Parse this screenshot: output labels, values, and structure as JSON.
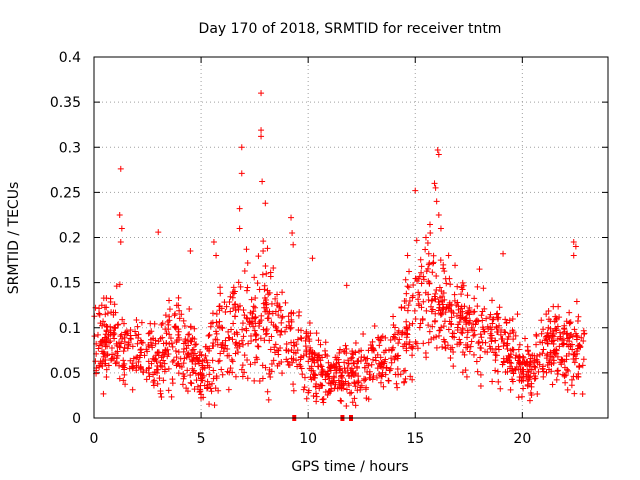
{
  "chart_data": {
    "type": "scatter",
    "title": "Day 170 of 2018, SRMTID for receiver tntm",
    "xlabel": "GPS time / hours",
    "ylabel": "SRMTID / TECUs",
    "xlim": [
      0,
      24
    ],
    "ylim": [
      0,
      0.4
    ],
    "xticks": [
      0,
      5,
      10,
      15,
      20
    ],
    "xtick_labels": [
      "0",
      "5",
      "10",
      "15",
      "20"
    ],
    "yticks": [
      0,
      0.05,
      0.1,
      0.15,
      0.2,
      0.25,
      0.3,
      0.35,
      0.4
    ],
    "ytick_labels": [
      "0",
      "0.05",
      "0.1",
      "0.15",
      "0.2",
      "0.25",
      "0.3",
      "0.35",
      "0.4"
    ],
    "grid": true,
    "marker": "+",
    "series_color": "#ff0000",
    "profile": {
      "x": [
        0,
        0.5,
        1,
        1.5,
        2,
        2.5,
        3,
        3.5,
        4,
        4.5,
        5,
        5.5,
        6,
        6.5,
        7,
        7.5,
        8,
        8.5,
        9,
        9.5,
        10,
        10.5,
        11,
        11.5,
        12,
        12.5,
        13,
        13.5,
        14,
        14.5,
        15,
        15.5,
        16,
        16.5,
        17,
        17.5,
        18,
        18.5,
        19,
        19.5,
        20,
        20.5,
        21,
        21.5,
        22,
        22.5,
        22.9
      ],
      "y_mean": [
        0.075,
        0.085,
        0.09,
        0.08,
        0.075,
        0.07,
        0.065,
        0.075,
        0.08,
        0.075,
        0.045,
        0.07,
        0.09,
        0.1,
        0.1,
        0.1,
        0.11,
        0.1,
        0.085,
        0.08,
        0.065,
        0.055,
        0.045,
        0.045,
        0.05,
        0.055,
        0.06,
        0.065,
        0.075,
        0.1,
        0.12,
        0.14,
        0.13,
        0.12,
        0.11,
        0.1,
        0.1,
        0.095,
        0.085,
        0.075,
        0.06,
        0.05,
        0.075,
        0.08,
        0.075,
        0.075,
        0.07
      ],
      "y_spread": [
        0.03,
        0.035,
        0.04,
        0.035,
        0.035,
        0.03,
        0.03,
        0.035,
        0.035,
        0.03,
        0.02,
        0.04,
        0.045,
        0.05,
        0.05,
        0.05,
        0.05,
        0.045,
        0.04,
        0.035,
        0.03,
        0.025,
        0.02,
        0.02,
        0.025,
        0.025,
        0.025,
        0.03,
        0.035,
        0.045,
        0.05,
        0.05,
        0.05,
        0.045,
        0.045,
        0.04,
        0.04,
        0.04,
        0.035,
        0.03,
        0.025,
        0.025,
        0.03,
        0.03,
        0.03,
        0.035,
        0.035
      ]
    },
    "outliers": [
      {
        "x": 1.25,
        "y": 0.276
      },
      {
        "x": 1.2,
        "y": 0.225
      },
      {
        "x": 1.3,
        "y": 0.21
      },
      {
        "x": 1.25,
        "y": 0.195
      },
      {
        "x": 3.0,
        "y": 0.206
      },
      {
        "x": 4.5,
        "y": 0.185
      },
      {
        "x": 5.6,
        "y": 0.195
      },
      {
        "x": 5.7,
        "y": 0.18
      },
      {
        "x": 6.9,
        "y": 0.3
      },
      {
        "x": 6.9,
        "y": 0.271
      },
      {
        "x": 6.8,
        "y": 0.232
      },
      {
        "x": 6.8,
        "y": 0.21
      },
      {
        "x": 7.8,
        "y": 0.36
      },
      {
        "x": 7.8,
        "y": 0.319
      },
      {
        "x": 7.8,
        "y": 0.312
      },
      {
        "x": 7.85,
        "y": 0.262
      },
      {
        "x": 8.0,
        "y": 0.238
      },
      {
        "x": 7.9,
        "y": 0.196
      },
      {
        "x": 8.1,
        "y": 0.188
      },
      {
        "x": 9.2,
        "y": 0.222
      },
      {
        "x": 9.25,
        "y": 0.205
      },
      {
        "x": 9.3,
        "y": 0.192
      },
      {
        "x": 10.2,
        "y": 0.177
      },
      {
        "x": 11.8,
        "y": 0.147
      },
      {
        "x": 15.0,
        "y": 0.252
      },
      {
        "x": 15.5,
        "y": 0.2
      },
      {
        "x": 15.7,
        "y": 0.205
      },
      {
        "x": 15.9,
        "y": 0.26
      },
      {
        "x": 15.95,
        "y": 0.255
      },
      {
        "x": 16.0,
        "y": 0.24
      },
      {
        "x": 16.05,
        "y": 0.297
      },
      {
        "x": 16.1,
        "y": 0.292
      },
      {
        "x": 16.1,
        "y": 0.225
      },
      {
        "x": 16.2,
        "y": 0.21
      },
      {
        "x": 18.0,
        "y": 0.165
      },
      {
        "x": 19.1,
        "y": 0.182
      },
      {
        "x": 22.4,
        "y": 0.195
      },
      {
        "x": 22.5,
        "y": 0.19
      },
      {
        "x": 22.4,
        "y": 0.18
      }
    ],
    "baseline_marks": [
      {
        "x": 9.35,
        "y": 0.0
      },
      {
        "x": 11.6,
        "y": 0.0
      },
      {
        "x": 12.0,
        "y": 0.0
      }
    ]
  }
}
